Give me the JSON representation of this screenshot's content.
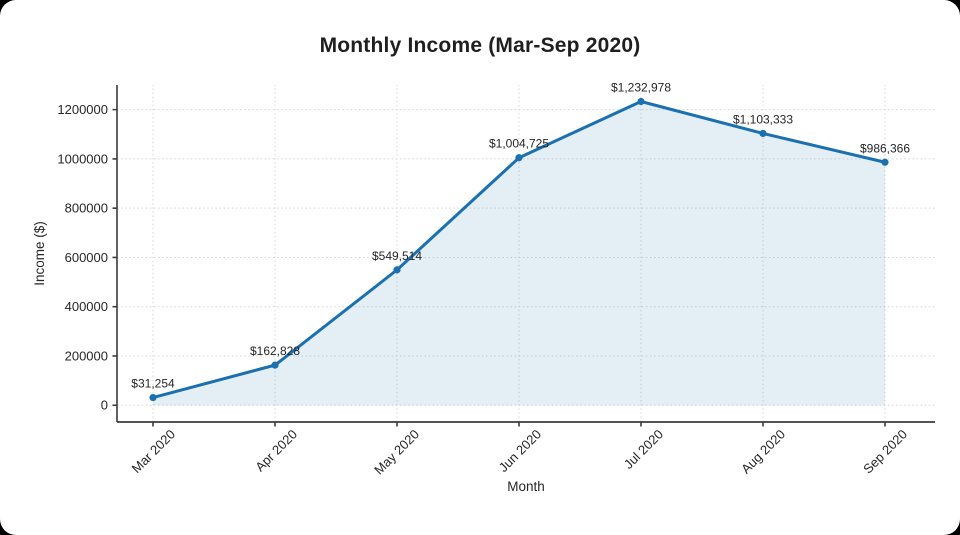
{
  "page": {
    "background_color": "#000000",
    "card_background_color": "#ffffff"
  },
  "chart_data": {
    "type": "line",
    "title": "Monthly Income (Mar-Sep 2020)",
    "xlabel": "Month",
    "ylabel": "Income ($)",
    "categories": [
      "Mar 2020",
      "Apr 2020",
      "May 2020",
      "Jun 2020",
      "Jul 2020",
      "Aug 2020",
      "Sep 2020"
    ],
    "series": [
      {
        "name": "Monthly Income",
        "values": [
          31254,
          162828,
          549514,
          1004725,
          1232978,
          1103333,
          986366
        ]
      }
    ],
    "point_labels": [
      "$31,254",
      "$162,828",
      "$549,514",
      "$1,004,725",
      "$1,232,978",
      "$1,103,333",
      "$986,366"
    ],
    "yticks": [
      0,
      200000,
      400000,
      600000,
      800000,
      1000000,
      1200000
    ],
    "ytick_labels": [
      "0",
      "200000",
      "400000",
      "600000",
      "800000",
      "1000000",
      "1200000"
    ],
    "ylim": [
      -68000,
      1300000
    ],
    "grid": "dotted",
    "legend_position": "none",
    "area_fill": true,
    "colors": {
      "line": "#1a70b0",
      "marker": "#1a70b0",
      "fill": "rgba(26, 112, 176, 0.12)",
      "grid": "#d6d6d6",
      "axis": "#3b3b3b",
      "tick_text": "#262626",
      "label_text": "#262626",
      "title_text": "#1f1f1f"
    }
  }
}
